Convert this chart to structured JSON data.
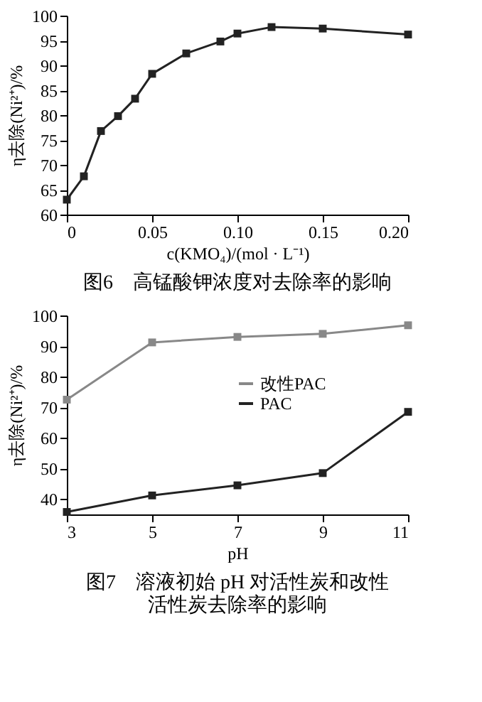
{
  "chart_data": [
    {
      "type": "line",
      "title": "图6　高锰酸钾浓度对去除率的影响",
      "xlabel": "c(KMO₄)/(mol · L⁻¹)",
      "ylabel": "η去除(Ni²⁺)/%",
      "x": [
        0,
        0.01,
        0.02,
        0.03,
        0.04,
        0.05,
        0.07,
        0.09,
        0.1,
        0.12,
        0.15,
        0.2
      ],
      "series": [
        {
          "color": "#222222",
          "values": [
            63,
            67.7,
            76.8,
            79.8,
            83.3,
            88.3,
            92.4,
            94.8,
            96.4,
            97.7,
            97.4,
            96.2
          ]
        }
      ],
      "xlim": [
        0,
        0.2
      ],
      "xticks": [
        0,
        {
          "value": 0.05,
          "label": "0.05"
        },
        {
          "value": 0.1,
          "label": "0.10"
        },
        {
          "value": 0.15,
          "label": "0.15"
        },
        {
          "value": 0.2,
          "label": "0.20"
        }
      ],
      "ylim": [
        60,
        100
      ],
      "yticks": [
        60,
        65,
        70,
        75,
        80,
        85,
        90,
        95,
        100
      ],
      "marker": "square",
      "grid": false
    },
    {
      "type": "line",
      "title": "图7　溶液初始 pH 对活性炭和改性活性炭去除率的影响",
      "xlabel": "pH",
      "ylabel": "η去除(Ni²⁺)/%",
      "x": [
        3,
        5,
        7,
        9,
        11
      ],
      "series": [
        {
          "name": "改性PAC",
          "color": "#888888",
          "values": [
            72.5,
            91.2,
            93.0,
            94.0,
            96.8
          ]
        },
        {
          "name": "PAC",
          "color": "#222222",
          "values": [
            35.8,
            41.2,
            44.5,
            48.5,
            68.5
          ]
        }
      ],
      "xlim": [
        3,
        11
      ],
      "xticks": [
        3,
        5,
        7,
        9,
        11
      ],
      "ylim": [
        35,
        100
      ],
      "yticks": [
        40,
        50,
        60,
        70,
        80,
        90,
        100
      ],
      "marker": "square",
      "legend": "right",
      "grid": false
    }
  ]
}
